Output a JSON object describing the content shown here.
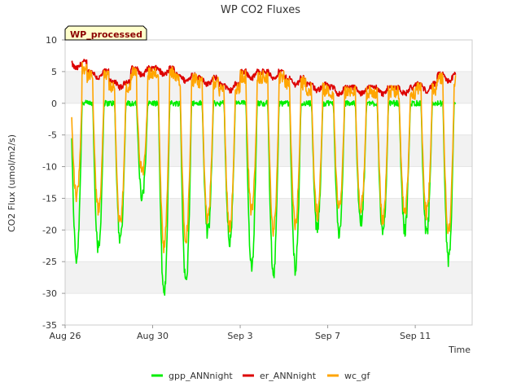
{
  "chart_data": {
    "type": "line",
    "title": "WP CO2 Fluxes",
    "xlabel": "Time",
    "ylabel": "CO2 Flux (umol/m2/s)",
    "badge": "WP_processed",
    "xlim": [
      0,
      18.6
    ],
    "ylim": [
      -35,
      10
    ],
    "yticks": [
      10,
      5,
      0,
      -5,
      -10,
      -15,
      -20,
      -25,
      -30,
      -35
    ],
    "xticks": [
      {
        "value": 0,
        "label": "Aug 26"
      },
      {
        "value": 4,
        "label": "Aug 30"
      },
      {
        "value": 8,
        "label": "Sep 3"
      },
      {
        "value": 12,
        "label": "Sep 7"
      },
      {
        "value": 16,
        "label": "Sep 11"
      }
    ],
    "x_units": "days since Aug 26 00:00",
    "days": 17,
    "day_start": 0.3,
    "series": [
      {
        "name": "gpp_ANNnight",
        "color": "#00ee00",
        "day_minima": [
          -24.5,
          -23,
          -21.5,
          -15,
          -30.5,
          -28.5,
          -20.5,
          -22,
          -25.5,
          -27,
          -26,
          -20,
          -20.5,
          -19,
          -21,
          -20,
          -21,
          -25
        ]
      },
      {
        "name": "er_ANNnight",
        "color": "#dd0000",
        "night_levels": [
          6.5,
          5.0,
          3.5,
          5.5,
          5.5,
          4.5,
          4.0,
          3.0,
          5.0,
          5.0,
          4.0,
          3.0,
          2.5,
          2.5,
          2.5,
          2.5,
          3.0,
          4.5
        ]
      },
      {
        "name": "wc_gf",
        "color": "#ffa500",
        "day_minima": [
          -16,
          -18,
          -20,
          -12,
          -24,
          -22,
          -19,
          -20,
          -18,
          -21,
          -20,
          -18,
          -17,
          -17,
          -19,
          -18,
          -18,
          -21
        ]
      }
    ]
  }
}
